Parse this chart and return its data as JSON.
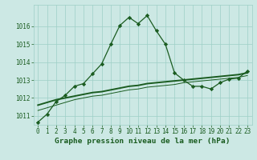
{
  "bg_color": "#cce8e4",
  "line_color": "#1a5c20",
  "grid_color": "#9ecfc7",
  "title": "Graphe pression niveau de la mer (hPa)",
  "xlim": [
    -0.5,
    23.5
  ],
  "ylim": [
    1010.5,
    1017.2
  ],
  "yticks": [
    1011,
    1012,
    1013,
    1014,
    1015,
    1016
  ],
  "xticks": [
    0,
    1,
    2,
    3,
    4,
    5,
    6,
    7,
    8,
    9,
    10,
    11,
    12,
    13,
    14,
    15,
    16,
    17,
    18,
    19,
    20,
    21,
    22,
    23
  ],
  "series1_x": [
    0,
    1,
    2,
    3,
    4,
    5,
    6,
    7,
    8,
    9,
    10,
    11,
    12,
    13,
    14,
    15,
    16,
    17,
    18,
    19,
    20,
    21,
    22,
    23
  ],
  "series1_y": [
    1010.65,
    1011.1,
    1011.8,
    1012.15,
    1012.65,
    1012.8,
    1013.35,
    1013.9,
    1015.0,
    1016.05,
    1016.5,
    1016.15,
    1016.6,
    1015.75,
    1015.0,
    1013.4,
    1013.0,
    1012.65,
    1012.65,
    1012.5,
    1012.85,
    1013.05,
    1013.1,
    1013.5
  ],
  "series2_x": [
    0,
    1,
    2,
    3,
    4,
    5,
    6,
    7,
    8,
    9,
    10,
    11,
    12,
    13,
    14,
    15,
    16,
    17,
    18,
    19,
    20,
    21,
    22,
    23
  ],
  "series2_y": [
    1011.6,
    1011.75,
    1011.9,
    1012.0,
    1012.1,
    1012.2,
    1012.3,
    1012.35,
    1012.45,
    1012.55,
    1012.65,
    1012.7,
    1012.8,
    1012.85,
    1012.9,
    1012.95,
    1013.0,
    1013.05,
    1013.1,
    1013.15,
    1013.2,
    1013.25,
    1013.3,
    1013.4
  ],
  "series3_x": [
    0,
    1,
    2,
    3,
    4,
    5,
    6,
    7,
    8,
    9,
    10,
    11,
    12,
    13,
    14,
    15,
    16,
    17,
    18,
    19,
    20,
    21,
    22,
    23
  ],
  "series3_y": [
    1011.3,
    1011.45,
    1011.6,
    1011.75,
    1011.9,
    1012.0,
    1012.1,
    1012.15,
    1012.25,
    1012.35,
    1012.45,
    1012.5,
    1012.6,
    1012.65,
    1012.7,
    1012.75,
    1012.85,
    1012.9,
    1012.95,
    1013.0,
    1013.05,
    1013.1,
    1013.15,
    1013.25
  ],
  "title_fontsize": 6.8,
  "tick_fontsize": 5.5,
  "marker": "D",
  "marker_size": 2.2,
  "linewidth": 0.9,
  "linewidth2": 1.4,
  "linewidth3": 0.7
}
